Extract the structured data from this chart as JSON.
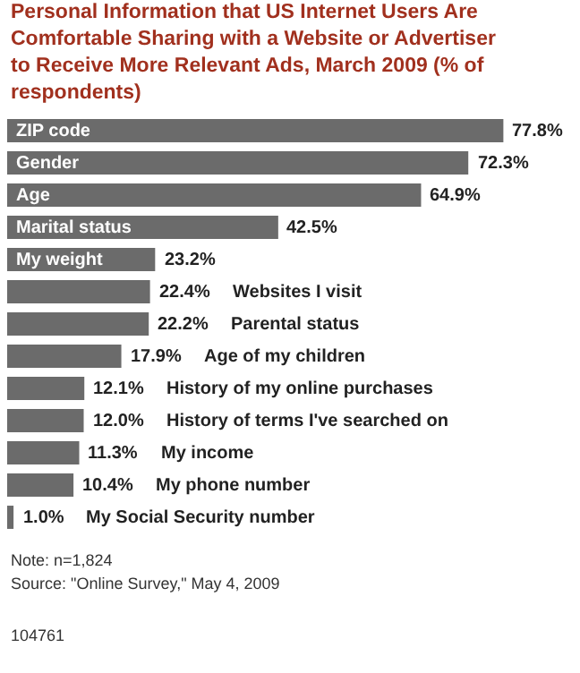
{
  "chart_data": {
    "type": "bar",
    "orientation": "horizontal",
    "title": "Personal Information that US Internet Users Are Comfortable Sharing with a Website or Advertiser to Receive More Relevant Ads, March 2009 (% of respondents)",
    "categories": [
      "ZIP code",
      "Gender",
      "Age",
      "Marital status",
      "My weight",
      "Websites I visit",
      "Parental status",
      "Age of my children",
      "History of my online purchases",
      "History of terms I've searched on",
      "My income",
      "My phone number",
      "My Social Security number"
    ],
    "values": [
      77.8,
      72.3,
      64.9,
      42.5,
      23.2,
      22.4,
      22.2,
      17.9,
      12.1,
      12.0,
      11.3,
      10.4,
      1.0
    ],
    "value_labels": [
      "77.8%",
      "72.3%",
      "64.9%",
      "42.5%",
      "23.2%",
      "22.4%",
      "22.2%",
      "17.9%",
      "12.1%",
      "12.0%",
      "11.3%",
      "10.4%",
      "1.0%"
    ],
    "color": "#6b6b6b",
    "annotations": [
      "Note: n=1,824",
      "Source: \"Online Survey,\" May 4, 2009",
      "104761"
    ]
  }
}
